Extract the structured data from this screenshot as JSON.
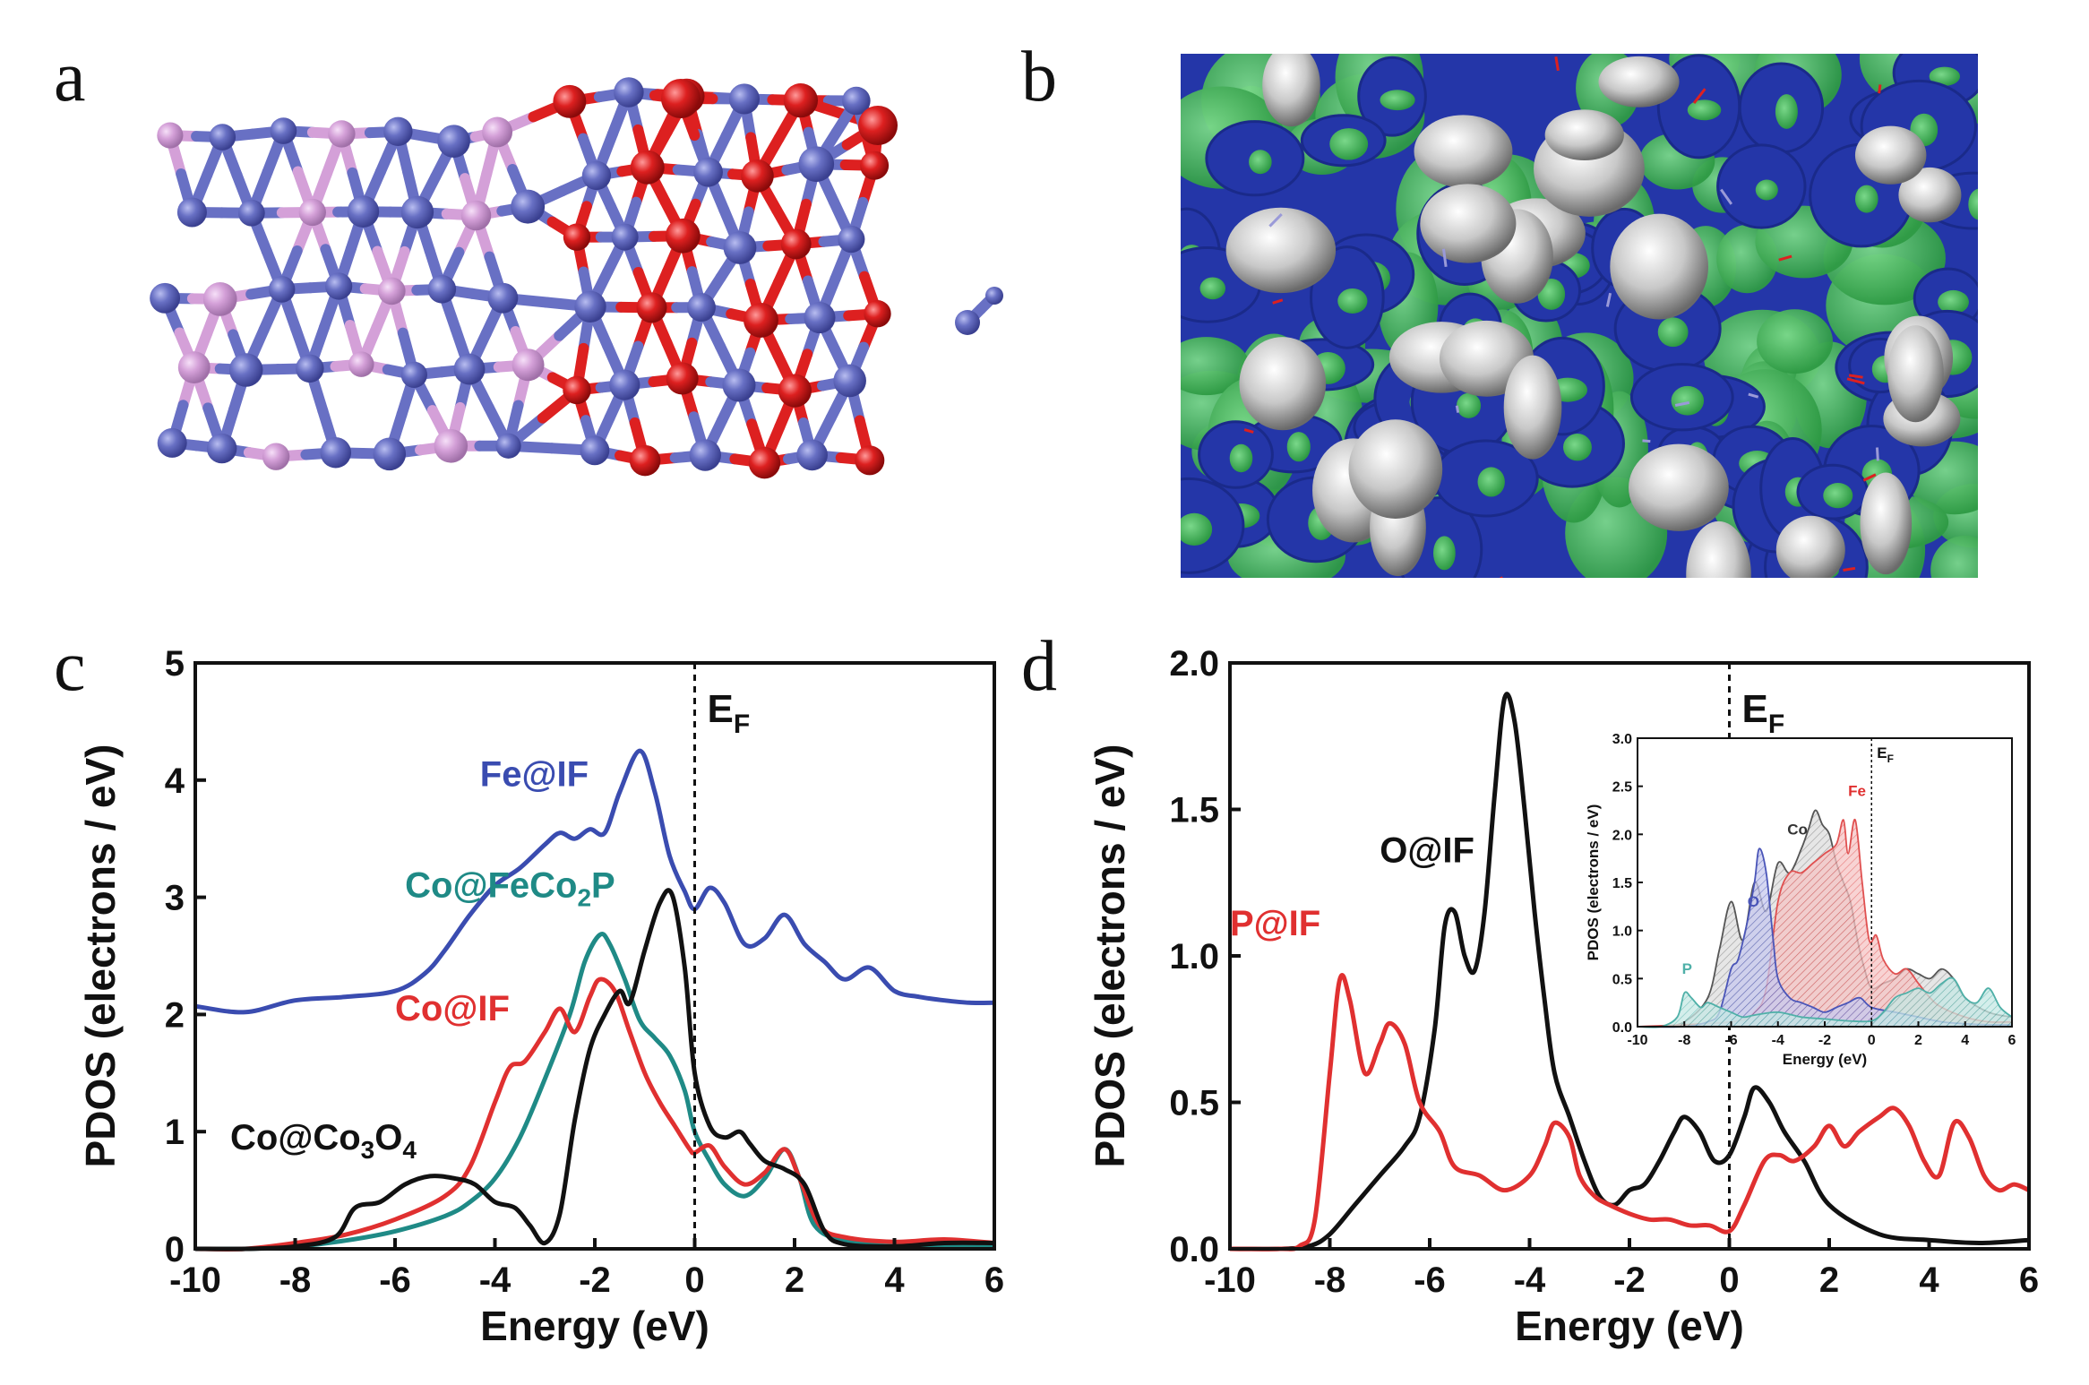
{
  "panels": {
    "a": {
      "label": "a"
    },
    "b": {
      "label": "b"
    },
    "c": {
      "label": "c"
    },
    "d": {
      "label": "d"
    }
  },
  "colors": {
    "atom_blue": "#6870c4",
    "atom_pink": "#d4a0d8",
    "atom_red": "#dd2020",
    "surface_blue": "#2436a8",
    "surface_green": "#46b85a",
    "surface_gray": "#c8c8c8",
    "fe": "#3a4cb0",
    "co_fecop": "#1f8a86",
    "co_if": "#e03030",
    "co_co3o4": "#111111",
    "o_if": "#111111",
    "p_if": "#e03030"
  },
  "chart_data": [
    {
      "id": "c",
      "type": "line",
      "xlabel": "Energy (eV)",
      "ylabel": "PDOS (electrons / eV)",
      "xlim": [
        -10,
        6
      ],
      "ylim": [
        0,
        5
      ],
      "xticks": [
        -10,
        -8,
        -6,
        -4,
        -2,
        0,
        2,
        4,
        6
      ],
      "yticks": [
        0,
        1,
        2,
        3,
        4,
        5
      ],
      "fermi_level": {
        "x": 0,
        "label": "E",
        "sub": "F"
      },
      "series": [
        {
          "name": "Fe@IF",
          "color": "#3a4cb0",
          "x": [
            -10,
            -9,
            -8,
            -7,
            -6,
            -5.4,
            -5,
            -4.5,
            -4,
            -3.5,
            -3,
            -2.7,
            -2.4,
            -2.1,
            -1.8,
            -1.5,
            -1.1,
            -0.8,
            -0.5,
            -0.2,
            0,
            0.3,
            0.6,
            1,
            1.4,
            1.8,
            2.2,
            2.6,
            3,
            3.5,
            4,
            4.5,
            5,
            5.5,
            6
          ],
          "y": [
            2.07,
            2.02,
            2.12,
            2.15,
            2.2,
            2.35,
            2.55,
            2.85,
            3.1,
            3.25,
            3.45,
            3.55,
            3.5,
            3.58,
            3.55,
            3.9,
            4.25,
            3.9,
            3.35,
            3.05,
            2.9,
            3.08,
            2.95,
            2.6,
            2.65,
            2.85,
            2.6,
            2.45,
            2.3,
            2.4,
            2.2,
            2.15,
            2.12,
            2.1,
            2.1
          ]
        },
        {
          "name": "Co@FeCo₂P",
          "color": "#1f8a86",
          "x": [
            -10,
            -9,
            -8,
            -7,
            -6,
            -5,
            -4.5,
            -4,
            -3.5,
            -3,
            -2.5,
            -2.2,
            -1.9,
            -1.7,
            -1.4,
            -1.1,
            -0.8,
            -0.5,
            -0.2,
            0,
            0.3,
            0.6,
            1,
            1.4,
            1.8,
            2.1,
            2.4,
            3,
            4,
            5,
            6
          ],
          "y": [
            0,
            0,
            0.02,
            0.07,
            0.15,
            0.28,
            0.4,
            0.6,
            0.95,
            1.45,
            2.0,
            2.45,
            2.68,
            2.6,
            2.3,
            1.95,
            1.8,
            1.65,
            1.35,
            1.0,
            0.75,
            0.55,
            0.45,
            0.6,
            0.85,
            0.6,
            0.2,
            0.07,
            0.04,
            0.03,
            0.03
          ]
        },
        {
          "name": "Co@IF",
          "color": "#e03030",
          "x": [
            -10,
            -9,
            -8,
            -7,
            -6,
            -5,
            -4.5,
            -4,
            -3.7,
            -3.4,
            -3,
            -2.7,
            -2.4,
            -2.1,
            -1.9,
            -1.6,
            -1.3,
            -1,
            -0.7,
            -0.4,
            -0.1,
            0,
            0.3,
            0.6,
            1,
            1.4,
            1.8,
            2.1,
            2.5,
            3,
            4,
            5,
            6
          ],
          "y": [
            0,
            0,
            0.05,
            0.12,
            0.25,
            0.45,
            0.7,
            1.25,
            1.55,
            1.6,
            1.85,
            2.05,
            1.85,
            2.15,
            2.3,
            2.2,
            1.85,
            1.5,
            1.25,
            1.05,
            0.85,
            0.82,
            0.88,
            0.7,
            0.55,
            0.65,
            0.85,
            0.6,
            0.2,
            0.1,
            0.06,
            0.08,
            0.05
          ]
        },
        {
          "name": "Co@Co₃O₄",
          "color": "#111111",
          "x": [
            -10,
            -9,
            -8,
            -7.2,
            -6.8,
            -6.3,
            -5.8,
            -5.3,
            -4.8,
            -4.4,
            -4,
            -3.6,
            -3.3,
            -3,
            -2.7,
            -2.4,
            -2.1,
            -1.8,
            -1.5,
            -1.3,
            -1,
            -0.7,
            -0.45,
            -0.2,
            0,
            0.3,
            0.6,
            0.9,
            1.1,
            1.4,
            1.8,
            2.2,
            2.6,
            3,
            4,
            5,
            6
          ],
          "y": [
            0,
            0,
            0.02,
            0.1,
            0.35,
            0.4,
            0.55,
            0.62,
            0.6,
            0.55,
            0.4,
            0.35,
            0.2,
            0.05,
            0.3,
            1.1,
            1.7,
            2.0,
            2.2,
            2.1,
            2.55,
            2.95,
            3.02,
            2.4,
            1.5,
            1.05,
            0.95,
            1.0,
            0.9,
            0.75,
            0.68,
            0.55,
            0.15,
            0.04,
            0.02,
            0.05,
            0.05
          ]
        }
      ],
      "annotations": [
        {
          "text": "Fe@IF",
          "color": "#3a4cb0",
          "x": -4.3,
          "y": 3.95
        },
        {
          "text": "Co@FeCo",
          "sub": "2",
          "suffix": "P",
          "color": "#1f8a86",
          "x": -5.8,
          "y": 3.0
        },
        {
          "text": "Co@IF",
          "color": "#e03030",
          "x": -6.0,
          "y": 1.95
        },
        {
          "text": "Co@Co",
          "sub": "3",
          "suffix": "O",
          "sub2": "4",
          "color": "#111111",
          "x": -9.3,
          "y": 0.85
        }
      ]
    },
    {
      "id": "d",
      "type": "line",
      "xlabel": "Energy (eV)",
      "ylabel": "PDOS (electrons / eV)",
      "xlim": [
        -10,
        6
      ],
      "ylim": [
        0,
        2.0
      ],
      "xticks": [
        -10,
        -8,
        -6,
        -4,
        -2,
        0,
        2,
        4,
        6
      ],
      "yticks": [
        0.0,
        0.5,
        1.0,
        1.5,
        2.0
      ],
      "fermi_level": {
        "x": 0,
        "label": "E",
        "sub": "F"
      },
      "series": [
        {
          "name": "O@IF",
          "color": "#111111",
          "x": [
            -10,
            -9,
            -8.4,
            -8,
            -7.5,
            -7,
            -6.5,
            -6.2,
            -5.9,
            -5.7,
            -5.5,
            -5.3,
            -5.1,
            -4.9,
            -4.7,
            -4.5,
            -4.3,
            -4.1,
            -3.9,
            -3.7,
            -3.5,
            -3.2,
            -2.9,
            -2.6,
            -2.3,
            -2.0,
            -1.7,
            -1.4,
            -1.1,
            -0.9,
            -0.6,
            -0.3,
            0,
            0.3,
            0.5,
            0.8,
            1.1,
            1.5,
            2,
            3,
            4,
            5,
            6
          ],
          "y": [
            0,
            0,
            0.01,
            0.05,
            0.15,
            0.25,
            0.35,
            0.45,
            0.75,
            1.1,
            1.15,
            1.0,
            0.95,
            1.15,
            1.55,
            1.88,
            1.8,
            1.5,
            1.15,
            0.85,
            0.6,
            0.45,
            0.3,
            0.18,
            0.15,
            0.2,
            0.22,
            0.3,
            0.4,
            0.45,
            0.4,
            0.3,
            0.32,
            0.45,
            0.55,
            0.5,
            0.4,
            0.3,
            0.15,
            0.05,
            0.03,
            0.02,
            0.03
          ]
        },
        {
          "name": "P@IF",
          "color": "#e03030",
          "x": [
            -10,
            -9,
            -8.6,
            -8.3,
            -8.0,
            -7.8,
            -7.6,
            -7.3,
            -7.0,
            -6.8,
            -6.5,
            -6.2,
            -5.8,
            -5.5,
            -5.0,
            -4.5,
            -4.0,
            -3.7,
            -3.5,
            -3.2,
            -3.0,
            -2.7,
            -2.4,
            -2.0,
            -1.6,
            -1.2,
            -0.8,
            -0.4,
            0,
            0.3,
            0.7,
            1.0,
            1.3,
            1.7,
            2.0,
            2.3,
            2.6,
            3.0,
            3.3,
            3.6,
            3.9,
            4.2,
            4.5,
            4.8,
            5.1,
            5.4,
            5.7,
            6
          ],
          "y": [
            0,
            0,
            0.01,
            0.1,
            0.6,
            0.92,
            0.85,
            0.6,
            0.7,
            0.77,
            0.7,
            0.5,
            0.4,
            0.28,
            0.25,
            0.2,
            0.25,
            0.35,
            0.43,
            0.38,
            0.25,
            0.18,
            0.15,
            0.12,
            0.1,
            0.1,
            0.08,
            0.08,
            0.06,
            0.15,
            0.3,
            0.32,
            0.3,
            0.35,
            0.42,
            0.35,
            0.4,
            0.45,
            0.48,
            0.42,
            0.3,
            0.25,
            0.43,
            0.38,
            0.25,
            0.2,
            0.22,
            0.2
          ]
        }
      ],
      "annotations": [
        {
          "text": "O@IF",
          "color": "#111111",
          "x": -7.0,
          "y": 1.32
        },
        {
          "text": "P@IF",
          "color": "#e03030",
          "x": -10.0,
          "y": 1.07
        }
      ],
      "inset": {
        "type": "area",
        "xlabel": "Energy (eV)",
        "ylabel": "PDOS (electrons / eV)",
        "xlim": [
          -10,
          6
        ],
        "ylim": [
          0,
          3.0
        ],
        "xticks": [
          -10,
          -8,
          -6,
          -4,
          -2,
          0,
          2,
          4,
          6
        ],
        "yticks": [
          0.0,
          0.5,
          1.0,
          1.5,
          2.0,
          2.5,
          3.0
        ],
        "fermi_level": {
          "x": 0,
          "label": "E",
          "sub": "F"
        },
        "series": [
          {
            "name": "Co",
            "color": "#555555",
            "x": [
              -10,
              -9,
              -8,
              -7,
              -6.5,
              -6,
              -5.5,
              -5,
              -4.5,
              -4,
              -3.5,
              -3,
              -2.7,
              -2.4,
              -2.1,
              -1.8,
              -1.5,
              -1.2,
              -0.9,
              -0.6,
              -0.3,
              0,
              0.5,
              1,
              1.5,
              2,
              2.5,
              3,
              3.5,
              4,
              5,
              6
            ],
            "y": [
              0,
              0,
              0.05,
              0.3,
              0.8,
              1.3,
              0.9,
              1.5,
              1.2,
              1.7,
              1.6,
              1.85,
              2.05,
              2.25,
              2.1,
              2.0,
              1.7,
              1.5,
              1.3,
              0.9,
              0.6,
              0.4,
              0.45,
              0.5,
              0.6,
              0.55,
              0.5,
              0.6,
              0.5,
              0.3,
              0.15,
              0.1
            ]
          },
          {
            "name": "Fe",
            "color": "#e05050",
            "x": [
              -10,
              -6,
              -5,
              -4.5,
              -4,
              -3.5,
              -3,
              -2.5,
              -2,
              -1.5,
              -1.2,
              -1,
              -0.7,
              -0.4,
              -0.1,
              0.2,
              0.5,
              1,
              1.5,
              2,
              2.5,
              3,
              4,
              5,
              6
            ],
            "y": [
              0,
              0.05,
              0.15,
              0.4,
              1.3,
              1.6,
              1.6,
              1.7,
              1.8,
              1.9,
              2.15,
              1.8,
              2.15,
              1.5,
              0.9,
              0.95,
              0.7,
              0.55,
              0.6,
              0.45,
              0.3,
              0.2,
              0.1,
              0.05,
              0.05
            ]
          },
          {
            "name": "O",
            "color": "#4a55b8",
            "x": [
              -10,
              -8,
              -7,
              -6.5,
              -6,
              -5.7,
              -5.3,
              -5,
              -4.8,
              -4.5,
              -4.2,
              -4,
              -3.5,
              -3,
              -2.5,
              -2,
              -1.5,
              -1,
              -0.5,
              0,
              1,
              2,
              3,
              4,
              5,
              6
            ],
            "y": [
              0,
              0,
              0.05,
              0.15,
              0.6,
              0.7,
              1.1,
              1.5,
              1.85,
              1.6,
              0.9,
              0.5,
              0.3,
              0.25,
              0.2,
              0.15,
              0.2,
              0.25,
              0.3,
              0.2,
              0.15,
              0.1,
              0.05,
              0.03,
              0.02,
              0.02
            ]
          },
          {
            "name": "P",
            "color": "#4fb0a8",
            "x": [
              -10,
              -9,
              -8.3,
              -8,
              -7.7,
              -7.3,
              -7,
              -6.5,
              -6,
              -5.5,
              -5,
              -4,
              -3,
              -2,
              -1,
              0,
              0.5,
              1,
              1.5,
              2,
              2.5,
              3,
              3.5,
              4,
              4.5,
              5,
              5.5,
              6
            ],
            "y": [
              0,
              0,
              0.1,
              0.35,
              0.3,
              0.2,
              0.25,
              0.2,
              0.15,
              0.1,
              0.12,
              0.15,
              0.1,
              0.08,
              0.06,
              0.06,
              0.15,
              0.3,
              0.35,
              0.4,
              0.35,
              0.45,
              0.5,
              0.3,
              0.25,
              0.4,
              0.2,
              0.1
            ]
          }
        ],
        "annotations": [
          {
            "text": "O",
            "color": "#4a55b8",
            "x": -5.3,
            "y": 1.25
          },
          {
            "text": "Co",
            "color": "#333333",
            "x": -3.6,
            "y": 2.0
          },
          {
            "text": "Fe",
            "color": "#e03030",
            "x": -1.0,
            "y": 2.4
          },
          {
            "text": "P",
            "color": "#4fb0a8",
            "x": -8.1,
            "y": 0.55
          }
        ]
      }
    }
  ]
}
